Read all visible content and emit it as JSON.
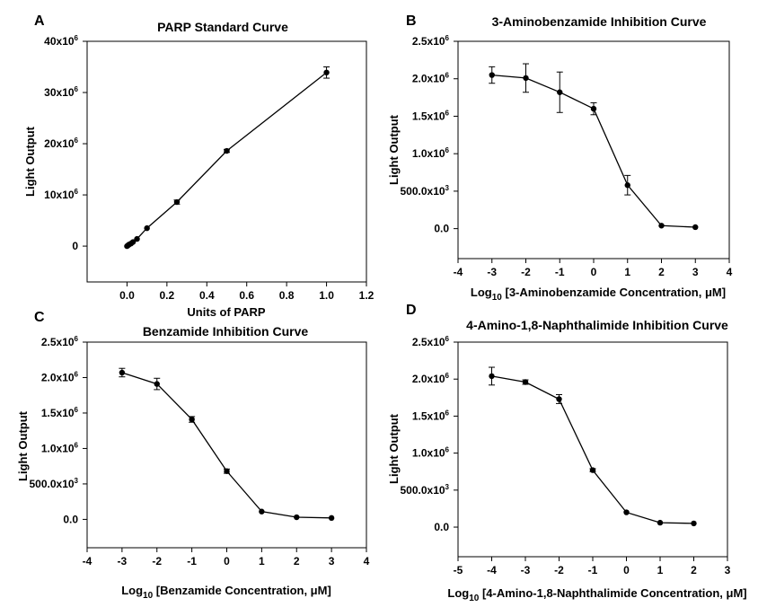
{
  "chart_data": [
    {
      "panel": "A",
      "type": "line",
      "title": "PARP Standard Curve",
      "xlabel": "Units of PARP",
      "ylabel": "Light Output",
      "xlim": [
        -0.2,
        1.2
      ],
      "ylim": [
        -7000000,
        40000000
      ],
      "xticks": [
        0,
        0.2,
        0.4,
        0.6,
        0.8,
        1.0,
        1.2
      ],
      "xtick_labels": [
        "0.0",
        "0.2",
        "0.4",
        "0.6",
        "0.8",
        "1.0",
        "1.2"
      ],
      "yticks": [
        0,
        10000000,
        20000000,
        30000000,
        40000000
      ],
      "ytick_labels": [
        {
          "base": "0",
          "exp": ""
        },
        {
          "base": "10x10",
          "exp": "6"
        },
        {
          "base": "20x10",
          "exp": "6"
        },
        {
          "base": "30x10",
          "exp": "6"
        },
        {
          "base": "40x10",
          "exp": "6"
        }
      ],
      "grid": false,
      "series": [
        {
          "x": [
            0,
            0.005,
            0.01,
            0.02,
            0.03,
            0.05,
            0.1,
            0.25,
            0.5,
            1.0
          ],
          "y": [
            0,
            150000,
            300000,
            500000,
            800000,
            1400000,
            3500000,
            8600000,
            18600000,
            33900000
          ],
          "err": [
            0,
            0,
            0,
            0,
            0,
            0,
            0,
            400000,
            300000,
            1100000
          ]
        }
      ]
    },
    {
      "panel": "B",
      "type": "line",
      "title": "3-Aminobenzamide Inhibition Curve",
      "xlabel_prefix": "Log",
      "xlabel_sub": "10",
      "xlabel_rest": " [3-Aminobenzamide Concentration, μM]",
      "ylabel": "Light Output",
      "xlim": [
        -4,
        4
      ],
      "ylim": [
        -400000,
        2500000
      ],
      "xticks": [
        -4,
        -3,
        -2,
        -1,
        0,
        1,
        2,
        3,
        4
      ],
      "xtick_labels": [
        "-4",
        "-3",
        "-2",
        "-1",
        "0",
        "1",
        "2",
        "3",
        "4"
      ],
      "yticks": [
        0,
        500000,
        1000000,
        1500000,
        2000000,
        2500000
      ],
      "ytick_labels": [
        {
          "base": "0.0",
          "exp": ""
        },
        {
          "base": "500.0x10",
          "exp": "3"
        },
        {
          "base": "1.0x10",
          "exp": "6"
        },
        {
          "base": "1.5x10",
          "exp": "6"
        },
        {
          "base": "2.0x10",
          "exp": "6"
        },
        {
          "base": "2.5x10",
          "exp": "6"
        }
      ],
      "grid": false,
      "series": [
        {
          "x": [
            -3,
            -2,
            -1,
            0,
            1,
            2,
            3
          ],
          "y": [
            2050000,
            2010000,
            1820000,
            1600000,
            580000,
            40000,
            20000
          ],
          "err": [
            110000,
            190000,
            270000,
            80000,
            130000,
            0,
            0
          ]
        }
      ]
    },
    {
      "panel": "C",
      "type": "line",
      "title": "Benzamide Inhibition Curve",
      "xlabel_prefix": "Log",
      "xlabel_sub": "10",
      "xlabel_rest": " [Benzamide Concentration, μM]",
      "ylabel": "Light Output",
      "xlim": [
        -4,
        4
      ],
      "ylim": [
        -400000,
        2500000
      ],
      "xticks": [
        -4,
        -3,
        -2,
        -1,
        0,
        1,
        2,
        3,
        4
      ],
      "xtick_labels": [
        "-4",
        "-3",
        "-2",
        "-1",
        "0",
        "1",
        "2",
        "3",
        "4"
      ],
      "yticks": [
        0,
        500000,
        1000000,
        1500000,
        2000000,
        2500000
      ],
      "ytick_labels": [
        {
          "base": "0.0",
          "exp": ""
        },
        {
          "base": "500.0x10",
          "exp": "3"
        },
        {
          "base": "1.0x10",
          "exp": "6"
        },
        {
          "base": "1.5x10",
          "exp": "6"
        },
        {
          "base": "2.0x10",
          "exp": "6"
        },
        {
          "base": "2.5x10",
          "exp": "6"
        }
      ],
      "grid": false,
      "series": [
        {
          "x": [
            -3,
            -2,
            -1,
            0,
            1,
            2,
            3
          ],
          "y": [
            2070000,
            1910000,
            1410000,
            680000,
            110000,
            30000,
            20000
          ],
          "err": [
            60000,
            80000,
            40000,
            30000,
            0,
            0,
            0
          ]
        }
      ]
    },
    {
      "panel": "D",
      "type": "line",
      "title": "4-Amino-1,8-Naphthalimide Inhibition Curve",
      "xlabel_prefix": "Log",
      "xlabel_sub": "10",
      "xlabel_rest": " [4-Amino-1,8-Naphthalimide Concentration, μM]",
      "ylabel": "Light Output",
      "xlim": [
        -5,
        3
      ],
      "ylim": [
        -400000,
        2500000
      ],
      "xticks": [
        -5,
        -4,
        -3,
        -2,
        -1,
        0,
        1,
        2,
        3
      ],
      "xtick_labels": [
        "-5",
        "-4",
        "-3",
        "-2",
        "-1",
        "0",
        "1",
        "2",
        "3"
      ],
      "yticks": [
        0,
        500000,
        1000000,
        1500000,
        2000000,
        2500000
      ],
      "ytick_labels": [
        {
          "base": "0.0",
          "exp": ""
        },
        {
          "base": "500.0x10",
          "exp": "3"
        },
        {
          "base": "1.0x10",
          "exp": "6"
        },
        {
          "base": "1.5x10",
          "exp": "6"
        },
        {
          "base": "2.0x10",
          "exp": "6"
        },
        {
          "base": "2.5x10",
          "exp": "6"
        }
      ],
      "grid": false,
      "series": [
        {
          "x": [
            -4,
            -3,
            -2,
            -1,
            0,
            1,
            2
          ],
          "y": [
            2040000,
            1960000,
            1730000,
            770000,
            200000,
            60000,
            50000
          ],
          "err": [
            120000,
            30000,
            60000,
            20000,
            0,
            0,
            0
          ]
        }
      ]
    }
  ]
}
